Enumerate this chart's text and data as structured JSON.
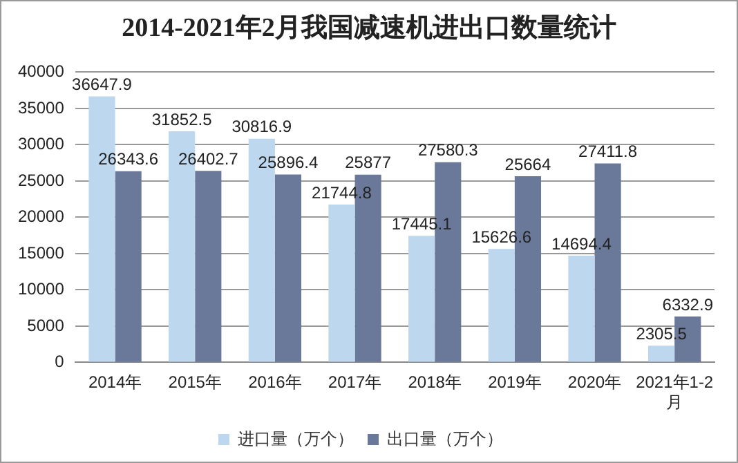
{
  "chart_data": {
    "type": "bar",
    "title": "2014-2021年2月我国减速机进出口数量统计",
    "categories": [
      "2014年",
      "2015年",
      "2016年",
      "2017年",
      "2018年",
      "2019年",
      "2020年",
      "2021年1-2月"
    ],
    "series": [
      {
        "name": "进口量（万个）",
        "color": "#bdd7ee",
        "values": [
          36647.9,
          31852.5,
          30816.9,
          21744.8,
          17445.1,
          15626.6,
          14694.4,
          2305.5
        ]
      },
      {
        "name": "出口量（万个）",
        "color": "#6a7899",
        "values": [
          26343.6,
          26402.7,
          25896.4,
          25877,
          27580.3,
          25664,
          27411.8,
          6332.9
        ]
      }
    ],
    "ylim": [
      0,
      40000
    ],
    "yticks": [
      0,
      5000,
      10000,
      15000,
      20000,
      25000,
      30000,
      35000,
      40000
    ],
    "grid": "y",
    "legend": "bottom",
    "data_labels": true
  }
}
